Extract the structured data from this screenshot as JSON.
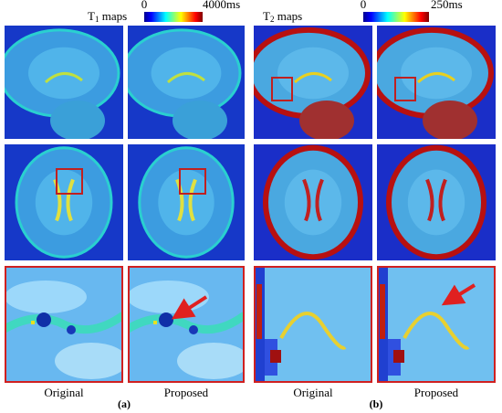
{
  "panels": [
    {
      "colorbar": {
        "symbol": "T",
        "subscript": "1",
        "suffix": " maps",
        "min_label": "0",
        "max_label": "4000ms"
      },
      "captions": [
        "Original",
        "Proposed"
      ],
      "label": "(a)"
    },
    {
      "colorbar": {
        "symbol": "T",
        "subscript": "2",
        "suffix": " maps",
        "min_label": "0",
        "max_label": "250ms"
      },
      "captions": [
        "Original",
        "Proposed"
      ],
      "label": "(b)"
    }
  ]
}
